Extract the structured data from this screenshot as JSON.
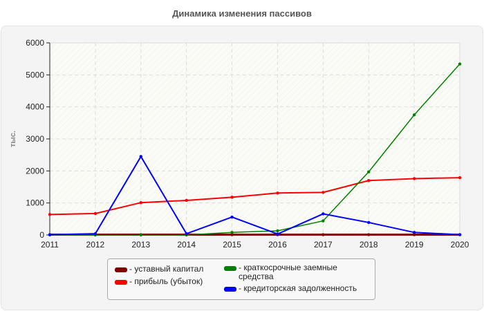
{
  "title": "Динамика изменения пассивов",
  "chart_data": {
    "type": "line",
    "title": "Динамика изменения пассивов",
    "xlabel": "",
    "ylabel": "тыс.",
    "x": [
      "2011",
      "2012",
      "2013",
      "2014",
      "2015",
      "2016",
      "2017",
      "2018",
      "2019",
      "2020"
    ],
    "ylim": [
      0,
      6000
    ],
    "yticks": [
      0,
      1000,
      2000,
      3000,
      4000,
      5000,
      6000
    ],
    "grid": true,
    "legend_position": "bottom",
    "series": [
      {
        "name": "уставный капитал",
        "color": "#800000",
        "values": [
          10,
          10,
          10,
          10,
          10,
          10,
          10,
          10,
          10,
          10
        ]
      },
      {
        "name": "прибыль (убыток)",
        "color": "#ff0000",
        "values": [
          640,
          670,
          1010,
          1080,
          1180,
          1310,
          1330,
          1700,
          1760,
          1790
        ]
      },
      {
        "name": "краткосрочные заемные средства",
        "color": "#008000",
        "values": [
          0,
          0,
          0,
          0,
          80,
          130,
          440,
          1970,
          3750,
          5340
        ]
      },
      {
        "name": "кредиторская задолженность",
        "color": "#0000ff",
        "values": [
          10,
          40,
          2450,
          40,
          560,
          30,
          660,
          390,
          80,
          10
        ]
      }
    ]
  },
  "legend": {
    "items": [
      {
        "label": "- уставный капитал",
        "color": "#800000"
      },
      {
        "label": "- прибыль (убыток)",
        "color": "#ff0000"
      },
      {
        "label": "- краткосрочные заемные средства",
        "color": "#008000"
      },
      {
        "label": "- кредиторская задолженность",
        "color": "#0000ff"
      }
    ]
  }
}
